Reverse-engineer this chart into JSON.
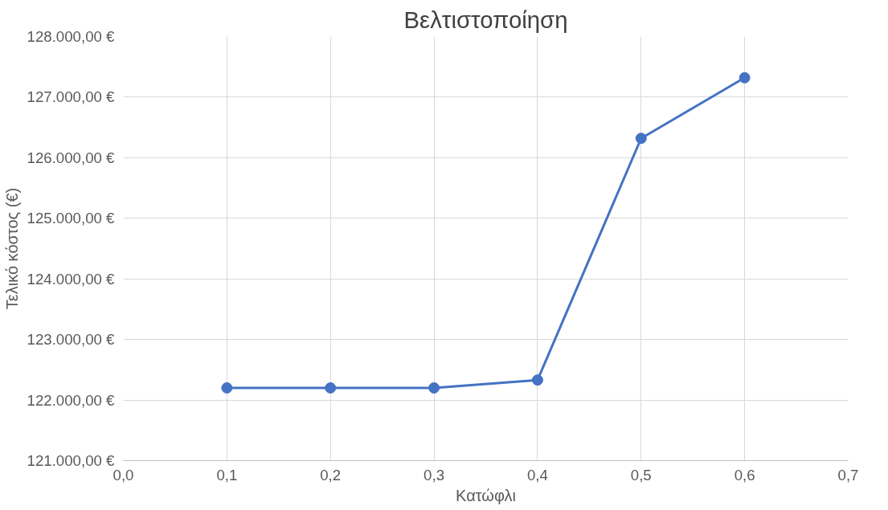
{
  "chart_data": {
    "type": "line",
    "title": "Βελτιστοποίηση",
    "xlabel": "Κατώφλι",
    "ylabel": "Τελικό κόστος (€)",
    "x": [
      0.1,
      0.2,
      0.3,
      0.4,
      0.5,
      0.6
    ],
    "series": [
      {
        "color": "#4472c4",
        "values": [
          122200,
          122200,
          122200,
          122330,
          126320,
          127320
        ]
      }
    ],
    "xlim": [
      0,
      0.7
    ],
    "xticks": [
      {
        "value": 0,
        "label": "0,0"
      },
      {
        "value": 0.1,
        "label": "0,1"
      },
      {
        "value": 0.2,
        "label": "0,2"
      },
      {
        "value": 0.3,
        "label": "0,3"
      },
      {
        "value": 0.4,
        "label": "0,4"
      },
      {
        "value": 0.5,
        "label": "0,5"
      },
      {
        "value": 0.6,
        "label": "0,6"
      },
      {
        "value": 0.7,
        "label": "0,7"
      }
    ],
    "ylim": [
      121000,
      128000
    ],
    "yticks": [
      {
        "value": 121000,
        "label": "121.000,00 €"
      },
      {
        "value": 122000,
        "label": "122.000,00 €"
      },
      {
        "value": 123000,
        "label": "123.000,00 €"
      },
      {
        "value": 124000,
        "label": "124.000,00 €"
      },
      {
        "value": 125000,
        "label": "125.000,00 €"
      },
      {
        "value": 126000,
        "label": "126.000,00 €"
      },
      {
        "value": 127000,
        "label": "127.000,00 €"
      },
      {
        "value": 128000,
        "label": "128.000,00 €"
      }
    ],
    "grid": true,
    "marker": "circle",
    "line_style": "solid"
  }
}
